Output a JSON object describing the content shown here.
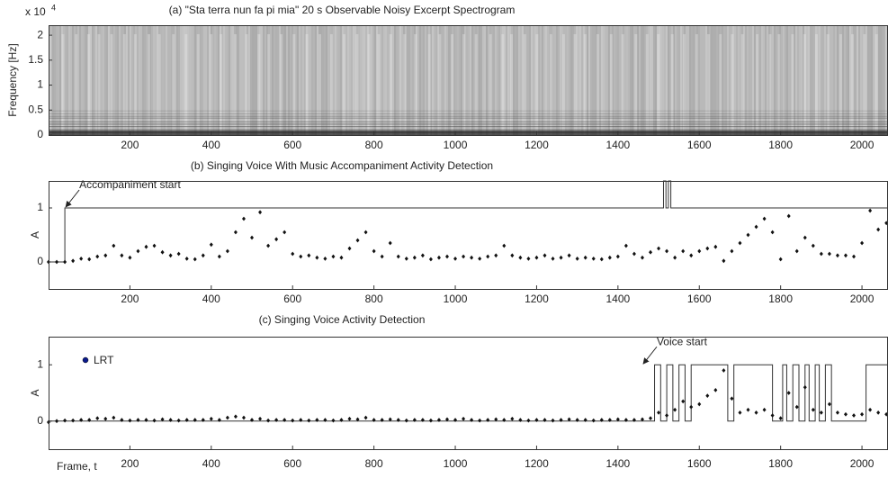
{
  "chart_data": [
    {
      "type": "spectrogram",
      "title": "(a) \"Sta terra nun fa pi mia\" 20 s Observable Noisy Excerpt Spectrogram",
      "ylabel": "Frequency [Hz]",
      "y_scale_label": "x 10",
      "y_scale_exponent": "4",
      "xlim": [
        0,
        2064
      ],
      "ylim": [
        0,
        2.2
      ],
      "xticks": [
        200,
        400,
        600,
        800,
        1000,
        1200,
        1400,
        1600,
        1800,
        2000
      ],
      "yticks": [
        0,
        0.5,
        1,
        1.5,
        2
      ]
    },
    {
      "type": "scatter",
      "title": "(b) Singing Voice With Music Accompaniment Activity Detection",
      "ylabel": "A",
      "xlim": [
        0,
        2064
      ],
      "ylim": [
        -0.5,
        1.5
      ],
      "xticks": [
        200,
        400,
        600,
        800,
        1000,
        1200,
        1400,
        1600,
        1800,
        2000
      ],
      "yticks": [
        0,
        1
      ],
      "annotation": {
        "text": "Accompaniment start",
        "x": 40,
        "y": 1
      },
      "x": [
        0,
        20,
        40,
        60,
        80,
        100,
        120,
        140,
        160,
        180,
        200,
        220,
        240,
        260,
        280,
        300,
        320,
        340,
        360,
        380,
        400,
        420,
        440,
        460,
        480,
        500,
        520,
        540,
        560,
        580,
        600,
        620,
        640,
        660,
        680,
        700,
        720,
        740,
        760,
        780,
        800,
        820,
        840,
        860,
        880,
        900,
        920,
        940,
        960,
        980,
        1000,
        1020,
        1040,
        1060,
        1080,
        1100,
        1120,
        1140,
        1160,
        1180,
        1200,
        1220,
        1240,
        1260,
        1280,
        1300,
        1320,
        1340,
        1360,
        1380,
        1400,
        1420,
        1440,
        1460,
        1480,
        1500,
        1520,
        1540,
        1560,
        1580,
        1600,
        1620,
        1640,
        1660,
        1680,
        1700,
        1720,
        1740,
        1760,
        1780,
        1800,
        1820,
        1840,
        1860,
        1880,
        1900,
        1920,
        1940,
        1960,
        1980,
        2000,
        2020,
        2040,
        2060
      ],
      "values": [
        0,
        0,
        0,
        0.02,
        0.06,
        0.05,
        0.1,
        0.12,
        0.3,
        0.12,
        0.08,
        0.2,
        0.28,
        0.3,
        0.18,
        0.12,
        0.15,
        0.06,
        0.05,
        0.12,
        0.32,
        0.1,
        0.2,
        0.55,
        0.8,
        0.45,
        0.92,
        0.3,
        0.42,
        0.55,
        0.15,
        0.1,
        0.12,
        0.08,
        0.06,
        0.1,
        0.08,
        0.25,
        0.4,
        0.55,
        0.2,
        0.1,
        0.35,
        0.1,
        0.06,
        0.08,
        0.12,
        0.05,
        0.08,
        0.1,
        0.06,
        0.1,
        0.08,
        0.06,
        0.1,
        0.12,
        0.3,
        0.12,
        0.08,
        0.06,
        0.08,
        0.12,
        0.06,
        0.08,
        0.12,
        0.06,
        0.08,
        0.06,
        0.05,
        0.08,
        0.1,
        0.3,
        0.15,
        0.08,
        0.18,
        0.25,
        0.2,
        0.08,
        0.2,
        0.12,
        0.2,
        0.25,
        0.28,
        0.02,
        0.2,
        0.35,
        0.5,
        0.65,
        0.8,
        0.55,
        0.05,
        0.85,
        0.2,
        0.45,
        0.3,
        0.15,
        0.15,
        0.12,
        0.12,
        0.1,
        0.35,
        0.95,
        0.6,
        0.72
      ],
      "step": {
        "x": [
          0,
          40,
          40,
          1512,
          1512,
          1518,
          1518,
          1524,
          1524,
          1530,
          1530,
          2064
        ],
        "values": [
          0,
          0,
          1,
          1,
          1.5,
          1.5,
          1,
          1,
          1.5,
          1.5,
          1,
          1
        ]
      }
    },
    {
      "type": "scatter",
      "title": "(c) Singing Voice  Activity Detection",
      "ylabel": "A",
      "xlabel": "Frame, t",
      "xlim": [
        0,
        2064
      ],
      "ylim": [
        -0.5,
        1.5
      ],
      "xticks": [
        200,
        400,
        600,
        800,
        1000,
        1200,
        1400,
        1600,
        1800,
        2000
      ],
      "yticks": [
        0,
        1
      ],
      "legend_label": "LRT",
      "legend_color": "#0a1a8c",
      "annotation": {
        "text": "Voice start",
        "x": 1460,
        "y": 1
      },
      "x": [
        0,
        20,
        40,
        60,
        80,
        100,
        120,
        140,
        160,
        180,
        200,
        220,
        240,
        260,
        280,
        300,
        320,
        340,
        360,
        380,
        400,
        420,
        440,
        460,
        480,
        500,
        520,
        540,
        560,
        580,
        600,
        620,
        640,
        660,
        680,
        700,
        720,
        740,
        760,
        780,
        800,
        820,
        840,
        860,
        880,
        900,
        920,
        940,
        960,
        980,
        1000,
        1020,
        1040,
        1060,
        1080,
        1100,
        1120,
        1140,
        1160,
        1180,
        1200,
        1220,
        1240,
        1260,
        1280,
        1300,
        1320,
        1340,
        1360,
        1380,
        1400,
        1420,
        1440,
        1460,
        1480,
        1500,
        1520,
        1540,
        1560,
        1580,
        1600,
        1620,
        1640,
        1660,
        1680,
        1700,
        1720,
        1740,
        1760,
        1780,
        1800,
        1820,
        1840,
        1860,
        1880,
        1900,
        1920,
        1940,
        1960,
        1980,
        2000,
        2020,
        2040,
        2060
      ],
      "values": [
        -0.02,
        0,
        0.01,
        0.01,
        0.02,
        0.02,
        0.05,
        0.04,
        0.06,
        0.02,
        0.01,
        0.02,
        0.02,
        0.01,
        0.03,
        0.02,
        0.01,
        0.02,
        0.02,
        0.02,
        0.04,
        0.02,
        0.06,
        0.08,
        0.06,
        0.02,
        0.04,
        0.01,
        0.02,
        0.02,
        0.01,
        0.02,
        0.01,
        0.02,
        0.02,
        0.01,
        0.02,
        0.04,
        0.03,
        0.06,
        0.02,
        0.02,
        0.03,
        0.02,
        0.01,
        0.02,
        0.02,
        0.01,
        0.02,
        0.03,
        0.02,
        0.04,
        0.02,
        0.01,
        0.02,
        0.03,
        0.02,
        0.04,
        0.02,
        0.01,
        0.02,
        0.02,
        0.01,
        0.02,
        0.03,
        0.02,
        0.02,
        0.01,
        0.02,
        0.02,
        0.03,
        0.02,
        0.02,
        0.03,
        0.05,
        0.15,
        0.1,
        0.2,
        0.35,
        0.25,
        0.3,
        0.45,
        0.55,
        0.9,
        0.4,
        0.15,
        0.2,
        0.15,
        0.2,
        0.1,
        0.05,
        0.5,
        0.25,
        0.6,
        0.2,
        0.15,
        0.3,
        0.15,
        0.12,
        0.1,
        0.12,
        0.2,
        0.15,
        0.12
      ],
      "step": {
        "x": [
          0,
          1490,
          1490,
          1505,
          1505,
          1520,
          1520,
          1535,
          1535,
          1550,
          1550,
          1565,
          1565,
          1580,
          1580,
          1670,
          1670,
          1685,
          1685,
          1780,
          1780,
          1805,
          1805,
          1815,
          1815,
          1830,
          1830,
          1845,
          1845,
          1860,
          1860,
          1870,
          1870,
          1885,
          1885,
          1895,
          1895,
          1910,
          1910,
          1925,
          1925,
          2010,
          2010,
          2064
        ],
        "values": [
          0,
          0,
          1,
          1,
          0,
          0,
          1,
          1,
          0,
          0,
          1,
          1,
          0,
          0,
          1,
          1,
          0,
          0,
          1,
          1,
          0,
          0,
          1,
          1,
          0,
          0,
          1,
          1,
          0,
          0,
          1,
          1,
          0,
          0,
          1,
          1,
          0,
          0,
          1,
          1,
          0,
          0,
          1,
          1
        ]
      }
    }
  ]
}
